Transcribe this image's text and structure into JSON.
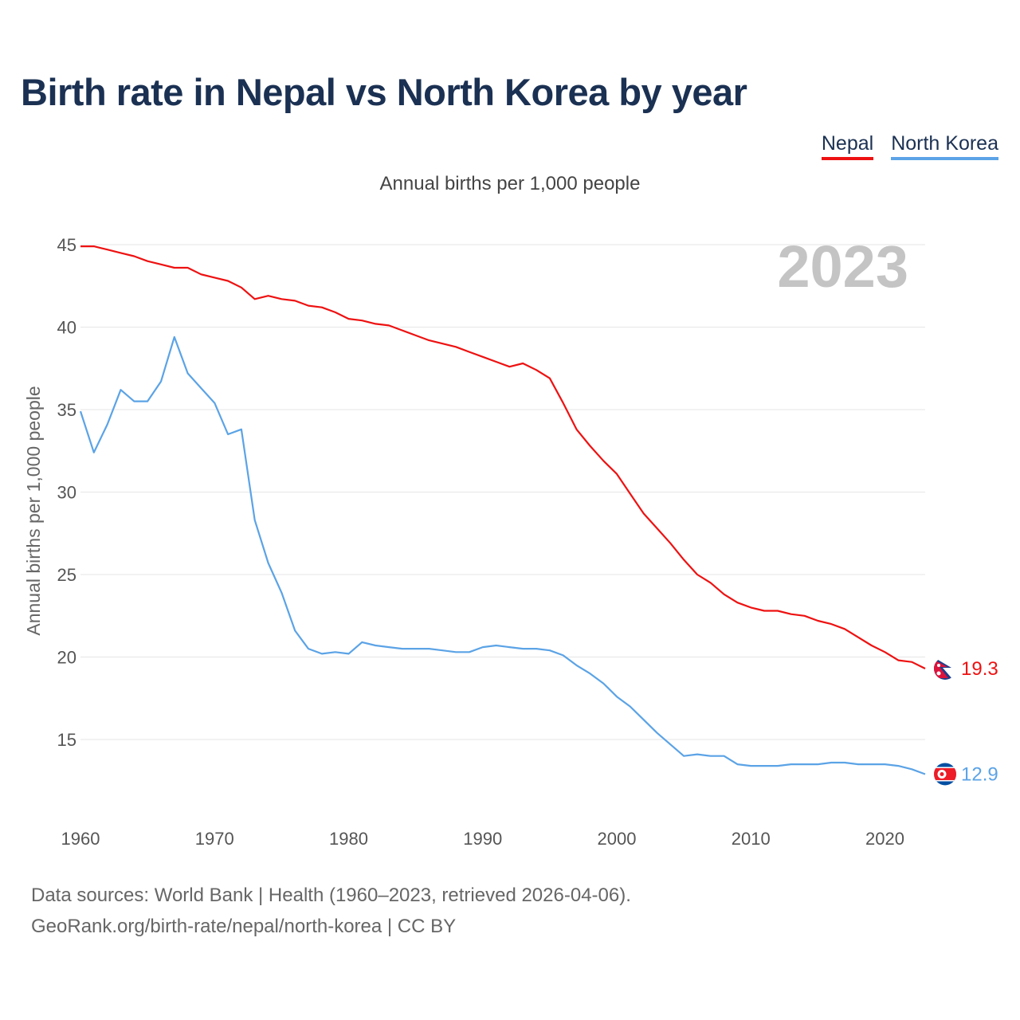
{
  "title": "Birth rate in Nepal vs North Korea by year",
  "subtitle": "Annual births per 1,000 people",
  "legend": [
    {
      "label": "Nepal",
      "color": "#ee1111"
    },
    {
      "label": "North Korea",
      "color": "#5ba3e6"
    }
  ],
  "footer": {
    "line1": "Data sources: World Bank | Health (1960–2023, retrieved 2026-04-06).",
    "line2": "GeoRank.org/birth-rate/nepal/north-korea | CC BY"
  },
  "chart_data": {
    "type": "line",
    "title": "Birth rate in Nepal vs North Korea by year",
    "xlabel": "",
    "ylabel": "Annual births per 1,000 people",
    "year_label": "2023",
    "xlim": [
      1960,
      2023
    ],
    "ylim": [
      11,
      46
    ],
    "x_ticks": [
      1960,
      1970,
      1980,
      1990,
      2000,
      2010,
      2020
    ],
    "y_ticks": [
      15,
      20,
      25,
      30,
      35,
      40,
      45
    ],
    "x": [
      1960,
      1961,
      1962,
      1963,
      1964,
      1965,
      1966,
      1967,
      1968,
      1969,
      1970,
      1971,
      1972,
      1973,
      1974,
      1975,
      1976,
      1977,
      1978,
      1979,
      1980,
      1981,
      1982,
      1983,
      1984,
      1985,
      1986,
      1987,
      1988,
      1989,
      1990,
      1991,
      1992,
      1993,
      1994,
      1995,
      1996,
      1997,
      1998,
      1999,
      2000,
      2001,
      2002,
      2003,
      2004,
      2005,
      2006,
      2007,
      2008,
      2009,
      2010,
      2011,
      2012,
      2013,
      2014,
      2015,
      2016,
      2017,
      2018,
      2019,
      2020,
      2021,
      2022,
      2023
    ],
    "series": [
      {
        "name": "Nepal",
        "color": "#ee1111",
        "end_label": "19.3",
        "values": [
          44.9,
          44.9,
          44.7,
          44.5,
          44.3,
          44.0,
          43.8,
          43.6,
          43.6,
          43.2,
          43.0,
          42.8,
          42.4,
          41.7,
          41.9,
          41.7,
          41.6,
          41.3,
          41.2,
          40.9,
          40.5,
          40.4,
          40.2,
          40.1,
          39.8,
          39.5,
          39.2,
          39.0,
          38.8,
          38.5,
          38.2,
          37.9,
          37.6,
          37.8,
          37.4,
          36.9,
          35.4,
          33.8,
          32.8,
          31.9,
          31.1,
          29.9,
          28.7,
          27.8,
          26.9,
          25.9,
          25.0,
          24.5,
          23.8,
          23.3,
          23.0,
          22.8,
          22.8,
          22.6,
          22.5,
          22.2,
          22.0,
          21.7,
          21.2,
          20.7,
          20.3,
          19.8,
          19.7,
          19.3
        ]
      },
      {
        "name": "North Korea",
        "color": "#5ba3e6",
        "end_label": "12.9",
        "values": [
          34.9,
          32.4,
          34.1,
          36.2,
          35.5,
          35.5,
          36.7,
          39.4,
          37.2,
          36.3,
          35.4,
          33.5,
          33.8,
          28.3,
          25.7,
          23.9,
          21.6,
          20.5,
          20.2,
          20.3,
          20.2,
          20.9,
          20.7,
          20.6,
          20.5,
          20.5,
          20.5,
          20.4,
          20.3,
          20.3,
          20.6,
          20.7,
          20.6,
          20.5,
          20.5,
          20.4,
          20.1,
          19.5,
          19.0,
          18.4,
          17.6,
          17.0,
          16.2,
          15.4,
          14.7,
          14.0,
          14.1,
          14.0,
          14.0,
          13.5,
          13.4,
          13.4,
          13.4,
          13.5,
          13.5,
          13.5,
          13.6,
          13.6,
          13.5,
          13.5,
          13.5,
          13.4,
          13.2,
          12.9
        ]
      }
    ]
  }
}
